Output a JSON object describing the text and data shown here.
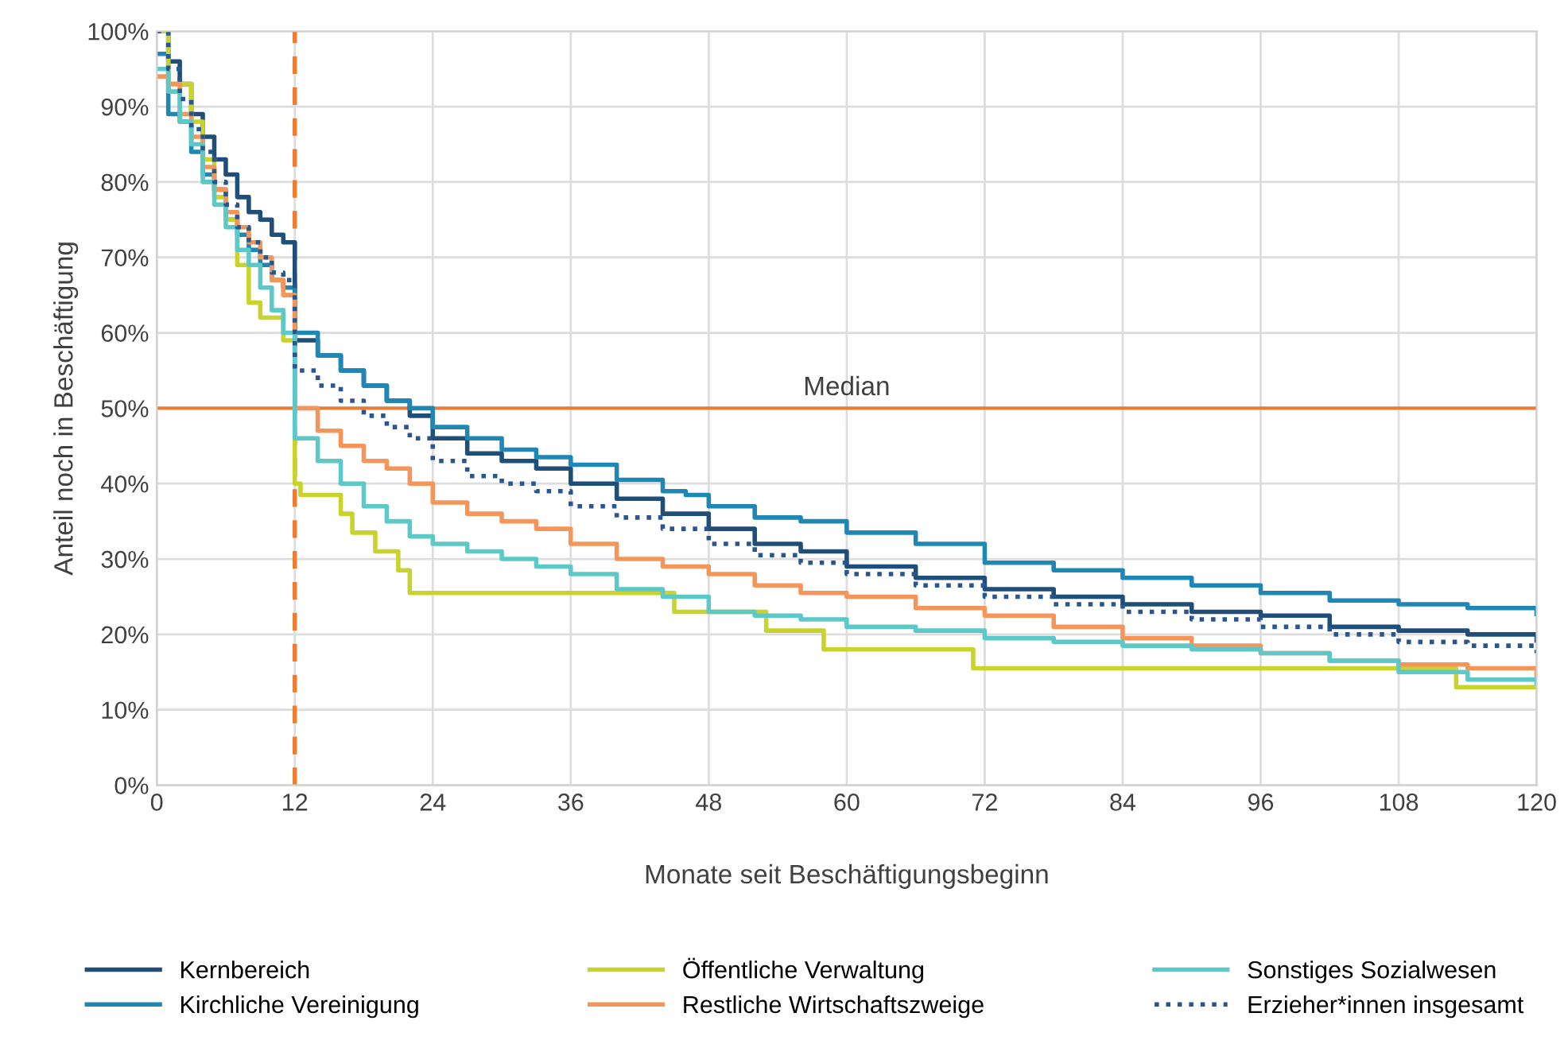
{
  "chart_data": {
    "type": "step",
    "xlabel": "Monate seit Beschäftigungsbeginn",
    "ylabel": "Anteil noch in Beschäftigung",
    "xlim": [
      0,
      120
    ],
    "xticks": [
      0,
      12,
      24,
      36,
      48,
      60,
      72,
      84,
      96,
      108,
      120
    ],
    "ylim": [
      0,
      100
    ],
    "yticks": [
      {
        "value": 0,
        "label": "0%"
      },
      {
        "value": 10,
        "label": "10%"
      },
      {
        "value": 20,
        "label": "20%"
      },
      {
        "value": 30,
        "label": "30%"
      },
      {
        "value": 40,
        "label": "40%"
      },
      {
        "value": 50,
        "label": "50%"
      },
      {
        "value": 60,
        "label": "60%"
      },
      {
        "value": 70,
        "label": "70%"
      },
      {
        "value": 80,
        "label": "80%"
      },
      {
        "value": 90,
        "label": "90%"
      },
      {
        "value": 100,
        "label": "100%"
      }
    ],
    "grid": true,
    "legend": "bottom",
    "line_style": "solid",
    "marker": "none",
    "ref_lines": [
      {
        "axis": "y",
        "value": 50,
        "label": "Median",
        "color": "#e87c3a",
        "line_style": "solid"
      },
      {
        "axis": "x",
        "value": 12,
        "label": null,
        "color": "#ed7d31",
        "line_style": "dashed"
      }
    ],
    "series": [
      {
        "name": "Kernbereich",
        "color": "#1f4e79",
        "x": [
          0,
          1,
          2,
          3,
          4,
          5,
          6,
          7,
          8,
          9,
          10,
          11,
          12,
          14,
          16,
          18,
          20,
          22,
          24,
          27,
          30,
          33,
          36,
          40,
          44,
          48,
          52,
          56,
          60,
          66,
          72,
          78,
          84,
          90,
          96,
          102,
          108,
          114,
          120
        ],
        "values": [
          100,
          96,
          93,
          89,
          86,
          83,
          81,
          78,
          76,
          75,
          73,
          72,
          59,
          57,
          55,
          53,
          51,
          49,
          46,
          44,
          43,
          42,
          40,
          38,
          36,
          34,
          32,
          31,
          29,
          27.5,
          26,
          25,
          24,
          23,
          22.5,
          21,
          20.5,
          20,
          19.2
        ]
      },
      {
        "name": "Kirchliche Vereinigung",
        "color": "#1f87b4",
        "x": [
          0,
          1,
          2,
          3,
          4,
          5,
          6,
          7,
          8,
          9,
          10,
          11,
          12,
          14,
          16,
          18,
          20,
          22,
          24,
          27,
          30,
          33,
          36,
          40,
          44,
          46,
          48,
          52,
          56,
          60,
          66,
          72,
          78,
          84,
          90,
          96,
          102,
          108,
          114,
          120
        ],
        "values": [
          97,
          89,
          88,
          84,
          81,
          79,
          75,
          73,
          71,
          69,
          67,
          66,
          60,
          57,
          55,
          53,
          51,
          50,
          47.5,
          46,
          44.5,
          43.5,
          42.5,
          40.5,
          39,
          38.5,
          37,
          35.5,
          35,
          33.5,
          32,
          29.5,
          28.5,
          27.5,
          26.5,
          25.5,
          24.5,
          24,
          23.5,
          22.7
        ]
      },
      {
        "name": "Öffentliche Verwaltung",
        "color": "#c8d42c",
        "x": [
          0,
          1,
          3,
          4,
          5,
          6,
          7,
          8,
          9,
          11,
          12,
          12.5,
          16,
          17,
          19,
          21,
          22,
          45,
          53,
          58,
          71,
          113,
          120
        ],
        "values": [
          100,
          93,
          88,
          83,
          78,
          75,
          69,
          64,
          62,
          59,
          40,
          38.5,
          36,
          33.5,
          31,
          28.5,
          25.5,
          23,
          20.5,
          18,
          15.5,
          13,
          13
        ]
      },
      {
        "name": "Restliche Wirtschaftszweige",
        "color": "#f4955a",
        "x": [
          0,
          1,
          2,
          3,
          4,
          5,
          6,
          7,
          8,
          9,
          10,
          11,
          12,
          14,
          16,
          18,
          20,
          22,
          24,
          27,
          30,
          33,
          36,
          40,
          44,
          48,
          52,
          56,
          60,
          66,
          72,
          78,
          84,
          90,
          96,
          102,
          108,
          114,
          120
        ],
        "values": [
          94,
          93,
          89,
          86,
          82,
          79,
          76,
          74,
          72,
          70,
          67,
          65,
          50,
          47,
          45,
          43,
          42,
          40,
          37.5,
          36,
          35,
          34,
          32,
          30,
          29,
          28,
          26.5,
          25.5,
          25,
          23.5,
          22.5,
          21,
          19.5,
          18.5,
          17.5,
          16.5,
          16,
          15.5,
          14.5
        ]
      },
      {
        "name": "Sonstiges Sozialwesen",
        "color": "#5cc8c8",
        "x": [
          0,
          1,
          2,
          3,
          4,
          5,
          6,
          7,
          8,
          9,
          10,
          11,
          12,
          14,
          16,
          18,
          20,
          22,
          24,
          27,
          30,
          33,
          36,
          40,
          44,
          48,
          52,
          56,
          60,
          66,
          72,
          78,
          84,
          90,
          96,
          102,
          108,
          114,
          120
        ],
        "values": [
          95,
          92,
          88,
          85,
          80,
          77,
          74,
          71,
          69,
          66,
          63,
          60,
          46,
          43,
          40,
          37,
          35,
          33,
          32,
          31,
          30,
          29,
          28,
          26,
          25,
          23,
          22.5,
          22,
          21,
          20.5,
          19.5,
          19,
          18.5,
          18,
          17.5,
          16.5,
          15,
          14,
          13.5
        ]
      },
      {
        "name": "Erzieher*innen insgesamt",
        "color": "#2a5690",
        "line_style": "dotted",
        "x": [
          0,
          1,
          2,
          3,
          4,
          5,
          6,
          7,
          8,
          9,
          10,
          11,
          12,
          14,
          16,
          18,
          20,
          22,
          24,
          27,
          30,
          33,
          36,
          40,
          44,
          48,
          52,
          56,
          60,
          66,
          72,
          78,
          84,
          90,
          96,
          102,
          108,
          114,
          120
        ],
        "values": [
          100,
          95,
          91,
          87,
          84,
          80,
          77,
          74,
          72,
          70,
          68,
          67,
          55,
          53,
          51,
          49,
          47.5,
          46,
          43,
          41,
          40,
          39,
          37,
          35.5,
          34,
          32,
          30.5,
          29.5,
          28,
          26.5,
          25,
          24,
          23,
          22,
          21,
          20,
          19,
          18.5,
          17.5
        ]
      }
    ]
  }
}
